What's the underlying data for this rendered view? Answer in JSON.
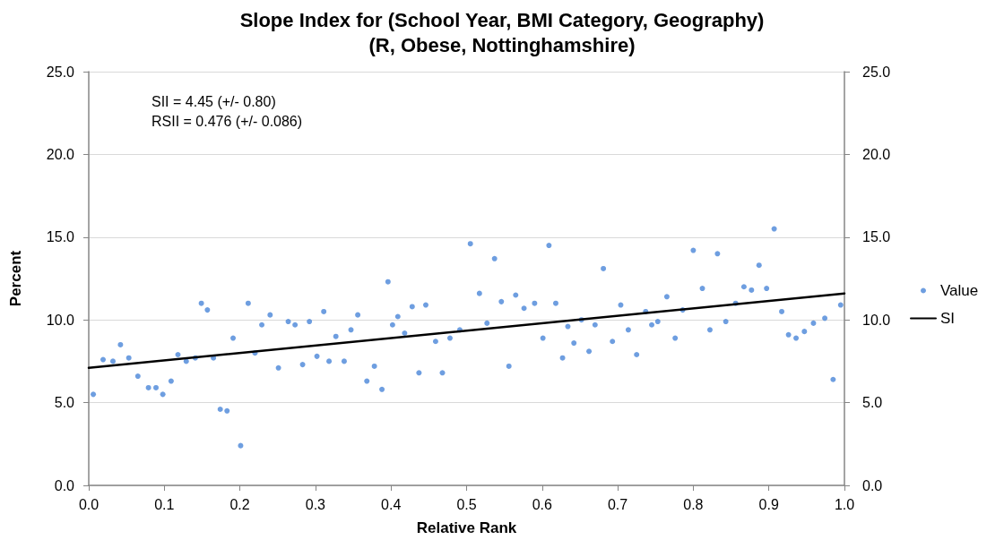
{
  "chart_data": {
    "type": "scatter",
    "title": "Slope Index for (School Year, BMI Category, Geography)\n(R, Obese, Nottinghamshire)",
    "xlabel": "Relative Rank",
    "ylabel": "Percent",
    "annotations": [
      "SII = 4.45 (+/- 0.80)",
      "RSII = 0.476 (+/- 0.086)"
    ],
    "series": [
      {
        "name": "Value",
        "color": "#4a86d8",
        "marker": "circle",
        "x": [
          0.006,
          0.019,
          0.032,
          0.042,
          0.053,
          0.065,
          0.079,
          0.089,
          0.098,
          0.109,
          0.118,
          0.129,
          0.141,
          0.149,
          0.157,
          0.165,
          0.174,
          0.183,
          0.191,
          0.201,
          0.211,
          0.22,
          0.229,
          0.24,
          0.251,
          0.264,
          0.273,
          0.283,
          0.292,
          0.302,
          0.311,
          0.318,
          0.327,
          0.338,
          0.347,
          0.356,
          0.368,
          0.378,
          0.388,
          0.396,
          0.402,
          0.409,
          0.418,
          0.428,
          0.437,
          0.446,
          0.459,
          0.468,
          0.478,
          0.491,
          0.505,
          0.517,
          0.527,
          0.537,
          0.546,
          0.556,
          0.565,
          0.576,
          0.59,
          0.601,
          0.609,
          0.618,
          0.627,
          0.634,
          0.642,
          0.652,
          0.662,
          0.67,
          0.681,
          0.693,
          0.704,
          0.714,
          0.725,
          0.737,
          0.745,
          0.753,
          0.765,
          0.776,
          0.786,
          0.8,
          0.812,
          0.822,
          0.832,
          0.843,
          0.856,
          0.867,
          0.877,
          0.887,
          0.897,
          0.907,
          0.917,
          0.926,
          0.936,
          0.947,
          0.959,
          0.974,
          0.985,
          0.995
        ],
        "values": [
          5.5,
          7.6,
          7.5,
          8.5,
          7.7,
          6.6,
          5.9,
          5.9,
          5.5,
          6.3,
          7.9,
          7.5,
          7.7,
          11.0,
          10.6,
          7.7,
          4.6,
          4.5,
          8.9,
          2.4,
          11.0,
          8.0,
          9.7,
          10.3,
          7.1,
          9.9,
          9.7,
          7.3,
          9.9,
          7.8,
          10.5,
          7.5,
          9.0,
          7.5,
          9.4,
          10.3,
          6.3,
          7.2,
          5.8,
          12.3,
          9.7,
          10.2,
          9.2,
          10.8,
          6.8,
          10.9,
          8.7,
          6.8,
          8.9,
          9.4,
          14.6,
          11.6,
          9.8,
          13.7,
          11.1,
          7.2,
          11.5,
          10.7,
          11.0,
          8.9,
          14.5,
          11.0,
          7.7,
          9.6,
          8.6,
          10.0,
          8.1,
          9.7,
          13.1,
          8.7,
          10.9,
          9.4,
          7.9,
          10.5,
          9.7,
          9.9,
          11.4,
          8.9,
          10.6,
          14.2,
          11.9,
          9.4,
          14.0,
          9.9,
          11.0,
          12.0,
          11.8,
          13.3,
          11.9,
          15.5,
          10.5,
          9.1,
          8.9,
          9.3,
          9.8,
          10.1,
          6.4,
          10.9
        ]
      },
      {
        "name": "SI",
        "type": "line",
        "color": "#000000",
        "marker": "none",
        "line_style": "solid",
        "x": [
          0,
          1
        ],
        "values": [
          7.1,
          11.6
        ]
      }
    ],
    "xlim": [
      0,
      1
    ],
    "xticks": [
      {
        "value": 0,
        "label": "0.0"
      },
      {
        "value": 0.1,
        "label": "0.1"
      },
      {
        "value": 0.2,
        "label": "0.2"
      },
      {
        "value": 0.3,
        "label": "0.3"
      },
      {
        "value": 0.4,
        "label": "0.4"
      },
      {
        "value": 0.5,
        "label": "0.5"
      },
      {
        "value": 0.6,
        "label": "0.6"
      },
      {
        "value": 0.7,
        "label": "0.7"
      },
      {
        "value": 0.8,
        "label": "0.8"
      },
      {
        "value": 0.9,
        "label": "0.9"
      },
      {
        "value": 1,
        "label": "1.0"
      }
    ],
    "ylim": [
      0,
      25
    ],
    "yticks": [
      {
        "value": 0,
        "label": "0.0"
      },
      {
        "value": 5,
        "label": "5.0"
      },
      {
        "value": 10,
        "label": "10.0"
      },
      {
        "value": 15,
        "label": "15.0"
      },
      {
        "value": 20,
        "label": "20.0"
      },
      {
        "value": 25,
        "label": "25.0"
      }
    ],
    "y2lim": [
      0,
      25
    ],
    "y2ticks": [
      {
        "value": 0,
        "label": "0.0"
      },
      {
        "value": 5,
        "label": "5.0"
      },
      {
        "value": 10,
        "label": "10.0"
      },
      {
        "value": 15,
        "label": "15.0"
      },
      {
        "value": 20,
        "label": "20.0"
      },
      {
        "value": 25,
        "label": "25.0"
      }
    ],
    "grid": "y",
    "legend": "right"
  }
}
